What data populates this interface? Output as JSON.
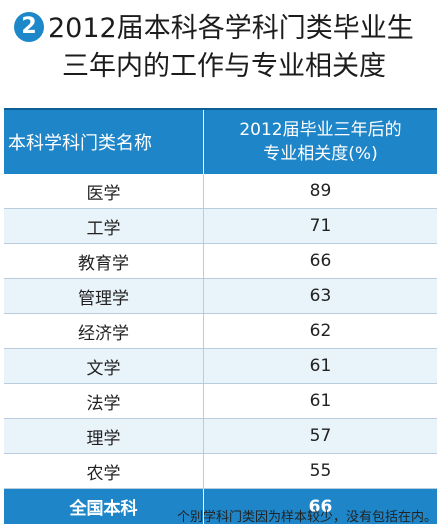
{
  "title": {
    "badge": "2",
    "line1": "2012届本科各学科门类毕业生",
    "line2": "三年内的工作与专业相关度"
  },
  "table": {
    "header": {
      "col1": "本科学科门类名称",
      "col2_line1": "2012届毕业三年后的",
      "col2_line2": "专业相关度(%)"
    },
    "rows": [
      {
        "name": "医学",
        "value": "89"
      },
      {
        "name": "工学",
        "value": "71"
      },
      {
        "name": "教育学",
        "value": "66"
      },
      {
        "name": "管理学",
        "value": "63"
      },
      {
        "name": "经济学",
        "value": "62"
      },
      {
        "name": "文学",
        "value": "61"
      },
      {
        "name": "法学",
        "value": "61"
      },
      {
        "name": "理学",
        "value": "57"
      },
      {
        "name": "农学",
        "value": "55"
      }
    ],
    "total": {
      "name": "全国本科",
      "value": "66"
    }
  },
  "note": "个别学科门类因为样本较少，没有包括在内。",
  "colors": {
    "accent": "#1e86c8",
    "row_alt": "#e9f3fa"
  }
}
